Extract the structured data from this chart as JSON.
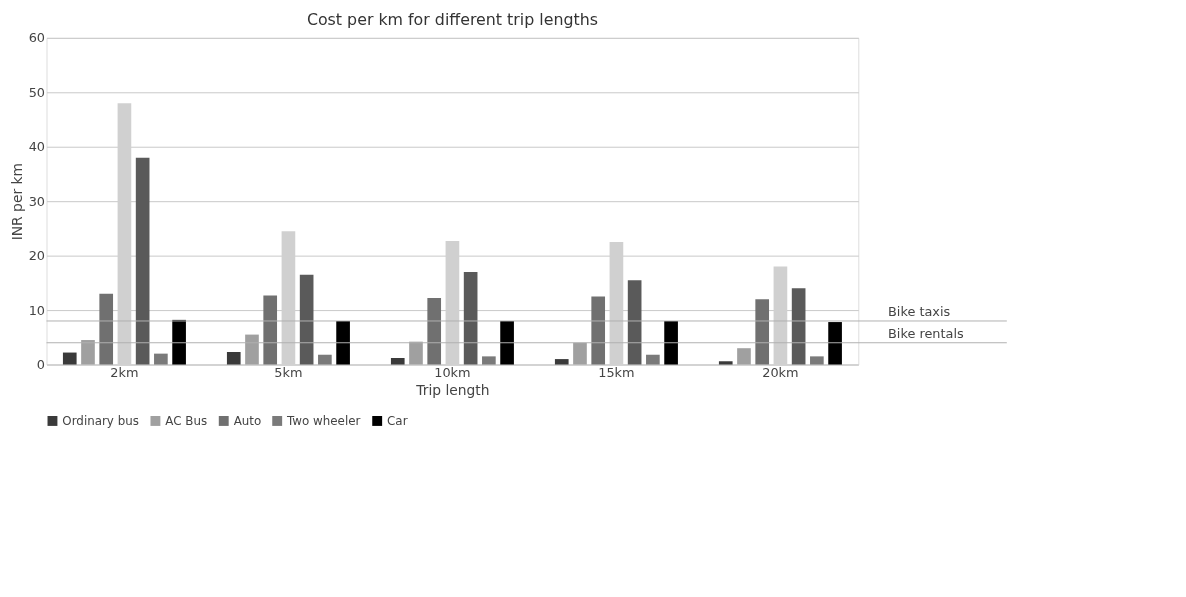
{
  "chart_data": {
    "type": "bar",
    "title": "Cost per km for different trip lengths",
    "xlabel": "Trip length",
    "ylabel": "INR per km",
    "categories": [
      "2km",
      "5km",
      "10km",
      "15km",
      "20km"
    ],
    "series": [
      {
        "name": "Ordinary bus",
        "color": "#3a3a3a",
        "values": [
          2.2,
          2.3,
          1.2,
          1,
          0.6
        ]
      },
      {
        "name": "AC Bus",
        "color": "#a0a0a0",
        "values": [
          4.5,
          5.5,
          4.2,
          4,
          3
        ]
      },
      {
        "name": "Auto",
        "color": "#707070",
        "values": [
          13,
          12.7,
          12.2,
          12.5,
          12
        ]
      },
      {
        "color": "#d0d0d0",
        "values": [
          48,
          24.5,
          22.7,
          22.5,
          18
        ]
      },
      {
        "color": "#5a5a5a",
        "values": [
          38,
          16.5,
          17,
          15.5,
          14
        ]
      },
      {
        "name": "Two wheeler",
        "color": "#7a7a7a",
        "values": [
          2,
          1.8,
          1.5,
          1.8,
          1.5
        ]
      },
      {
        "name": "Car",
        "color": "#000000",
        "values": [
          8.2,
          8,
          8,
          8,
          7.8
        ]
      }
    ],
    "ylim": [
      0,
      60
    ],
    "yticks": [
      0,
      10,
      20,
      30,
      40,
      50,
      60
    ],
    "grid": "y",
    "legend": "bottom",
    "ref_lines": [
      {
        "axis": "y",
        "value": 8,
        "label": "Bike taxis",
        "color": "#b0b0b0"
      },
      {
        "axis": "y",
        "value": 4,
        "label": "Bike rentals",
        "color": "#b0b0b0"
      }
    ]
  }
}
